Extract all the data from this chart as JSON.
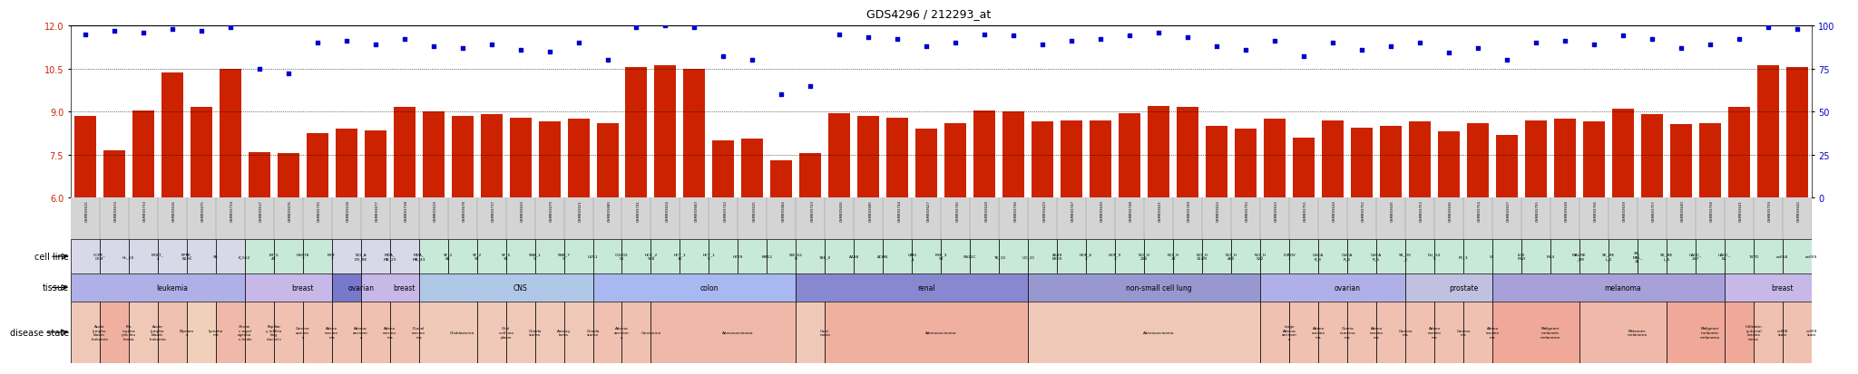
{
  "title": "GDS4296 / 212293_at",
  "ylim_left": [
    6,
    12
  ],
  "ylim_right": [
    0,
    100
  ],
  "yticks_left": [
    6,
    7.5,
    9,
    10.5,
    12
  ],
  "yticks_right": [
    0,
    25,
    50,
    75,
    100
  ],
  "bar_color": "#cc2200",
  "dot_color": "#0000cc",
  "n_samples": 60,
  "bar_values": [
    8.85,
    7.65,
    9.05,
    10.35,
    9.15,
    10.5,
    7.6,
    7.55,
    8.25,
    8.4,
    8.35,
    9.15,
    9.0,
    8.85,
    8.9,
    8.8,
    8.65,
    8.75,
    8.6,
    10.55,
    10.6,
    10.5,
    8.0,
    8.05,
    7.3,
    7.55,
    8.95,
    8.85,
    8.8,
    8.4,
    8.6,
    9.05,
    9.0,
    8.65,
    8.7,
    8.7,
    8.95,
    9.2,
    9.15,
    8.5,
    8.4,
    8.75,
    8.1,
    8.7,
    8.45,
    8.5,
    8.65,
    8.3,
    8.6,
    8.2,
    8.7,
    8.75,
    8.65,
    9.1,
    8.9,
    8.55,
    8.6,
    9.15,
    10.6,
    10.55
  ],
  "dot_values_pct": [
    95,
    97,
    96,
    98,
    97,
    99,
    75,
    72,
    90,
    91,
    89,
    92,
    88,
    87,
    89,
    86,
    85,
    90,
    80,
    99,
    100,
    99,
    82,
    80,
    60,
    65,
    95,
    93,
    92,
    88,
    90,
    95,
    94,
    89,
    91,
    92,
    94,
    96,
    93,
    88,
    86,
    91,
    82,
    90,
    86,
    88,
    90,
    84,
    87,
    80,
    90,
    91,
    89,
    94,
    92,
    87,
    89,
    92,
    99,
    98
  ],
  "sample_ids": [
    "GSM803615",
    "GSM803674",
    "GSM803733",
    "GSM803616",
    "GSM803675",
    "GSM803734",
    "GSM803617",
    "GSM803676",
    "GSM803735",
    "GSM803618",
    "GSM803677",
    "GSM803738",
    "GSM803619",
    "GSM803678",
    "GSM803737",
    "GSM803620",
    "GSM803679",
    "GSM803621",
    "GSM803680",
    "GSM803741",
    "GSM803624",
    "GSM803683",
    "GSM803742",
    "GSM803625",
    "GSM803684",
    "GSM803743",
    "GSM803626",
    "GSM803685",
    "GSM803744",
    "GSM803627",
    "GSM803745",
    "GSM803628",
    "GSM803746",
    "GSM803629",
    "GSM803747",
    "GSM803630",
    "GSM803748",
    "GSM803631",
    "GSM803749",
    "GSM803632",
    "GSM803750",
    "GSM803633",
    "GSM803751",
    "GSM803634",
    "GSM803752",
    "GSM803635",
    "GSM803753",
    "GSM803636",
    "GSM803754",
    "GSM803637",
    "GSM803755",
    "GSM803638",
    "GSM803756",
    "GSM803639",
    "GSM803757",
    "GSM803640",
    "GSM803758",
    "GSM803641",
    "GSM803759",
    "GSM803642"
  ],
  "cell_lines": [
    {
      "label": "CCRF_\nCEM",
      "start": 0,
      "end": 1,
      "color": "#d8d8e8"
    },
    {
      "label": "HL_60",
      "start": 1,
      "end": 2,
      "color": "#d8d8e8"
    },
    {
      "label": "MOLT_\n4",
      "start": 2,
      "end": 3,
      "color": "#d8d8e8"
    },
    {
      "label": "RPMI_\n8226",
      "start": 3,
      "end": 4,
      "color": "#d8d8e8"
    },
    {
      "label": "SR",
      "start": 4,
      "end": 5,
      "color": "#d8d8e8"
    },
    {
      "label": "K_562",
      "start": 5,
      "end": 6,
      "color": "#d8d8e8"
    },
    {
      "label": "BT_5\n49",
      "start": 6,
      "end": 7,
      "color": "#c8e8d8"
    },
    {
      "label": "HS578\nT",
      "start": 7,
      "end": 8,
      "color": "#c8e8d8"
    },
    {
      "label": "MCF\n7",
      "start": 8,
      "end": 9,
      "color": "#c8e8d8"
    },
    {
      "label": "NCI_A\nDR_RE",
      "start": 9,
      "end": 10,
      "color": "#d8d8e8"
    },
    {
      "label": "MDA_\nMB_23",
      "start": 10,
      "end": 11,
      "color": "#d8d8e8"
    },
    {
      "label": "MDA_\nMB_43",
      "start": 11,
      "end": 12,
      "color": "#d8d8e8"
    },
    {
      "label": "SF_2\n68",
      "start": 12,
      "end": 13,
      "color": "#c8e8d8"
    },
    {
      "label": "SF_2\n95",
      "start": 13,
      "end": 14,
      "color": "#c8e8d8"
    },
    {
      "label": "SF_5\n39",
      "start": 14,
      "end": 15,
      "color": "#c8e8d8"
    },
    {
      "label": "SNB_1\n9",
      "start": 15,
      "end": 16,
      "color": "#c8e8d8"
    },
    {
      "label": "SNB_7\n5",
      "start": 16,
      "end": 17,
      "color": "#c8e8d8"
    },
    {
      "label": "U251",
      "start": 17,
      "end": 18,
      "color": "#c8e8d8"
    },
    {
      "label": "COLO2\n05",
      "start": 18,
      "end": 19,
      "color": "#c8e8d8"
    },
    {
      "label": "HCC_2\n998",
      "start": 19,
      "end": 20,
      "color": "#c8e8d8"
    },
    {
      "label": "HCT_1\n16",
      "start": 20,
      "end": 21,
      "color": "#c8e8d8"
    },
    {
      "label": "HCT_1\n5",
      "start": 21,
      "end": 22,
      "color": "#c8e8d8"
    },
    {
      "label": "HT29",
      "start": 22,
      "end": 23,
      "color": "#c8e8d8"
    },
    {
      "label": "KM12",
      "start": 23,
      "end": 24,
      "color": "#c8e8d8"
    },
    {
      "label": "SW_62\n0",
      "start": 24,
      "end": 25,
      "color": "#c8e8d8"
    },
    {
      "label": "786_0",
      "start": 25,
      "end": 26,
      "color": "#c8e8d8"
    },
    {
      "label": "A498",
      "start": 26,
      "end": 27,
      "color": "#c8e8d8"
    },
    {
      "label": "ACHN",
      "start": 27,
      "end": 28,
      "color": "#c8e8d8"
    },
    {
      "label": "CAKI\n_1",
      "start": 28,
      "end": 29,
      "color": "#c8e8d8"
    },
    {
      "label": "RXF_3\n93",
      "start": 29,
      "end": 30,
      "color": "#c8e8d8"
    },
    {
      "label": "SN12C",
      "start": 30,
      "end": 31,
      "color": "#c8e8d8"
    },
    {
      "label": "TK_10",
      "start": 31,
      "end": 32,
      "color": "#c8e8d8"
    },
    {
      "label": "UO_31",
      "start": 32,
      "end": 33,
      "color": "#c8e8d8"
    },
    {
      "label": "A549\nEKVX",
      "start": 33,
      "end": 34,
      "color": "#c8e8d8"
    },
    {
      "label": "HOP_6\n2",
      "start": 34,
      "end": 35,
      "color": "#c8e8d8"
    },
    {
      "label": "HOP_9\n2",
      "start": 35,
      "end": 36,
      "color": "#c8e8d8"
    },
    {
      "label": "NCI_H\n226",
      "start": 36,
      "end": 37,
      "color": "#c8e8d8"
    },
    {
      "label": "NCI_H\n23",
      "start": 37,
      "end": 38,
      "color": "#c8e8d8"
    },
    {
      "label": "NCI_H\n322M",
      "start": 38,
      "end": 39,
      "color": "#c8e8d8"
    },
    {
      "label": "NCI_H\n460",
      "start": 39,
      "end": 40,
      "color": "#c8e8d8"
    },
    {
      "label": "NCI_H\n522",
      "start": 40,
      "end": 41,
      "color": "#c8e8d8"
    },
    {
      "label": "IGROV\n1",
      "start": 41,
      "end": 42,
      "color": "#c8e8d8"
    },
    {
      "label": "OVCA\nR_3",
      "start": 42,
      "end": 43,
      "color": "#c8e8d8"
    },
    {
      "label": "OVCA\nR_4",
      "start": 43,
      "end": 44,
      "color": "#c8e8d8"
    },
    {
      "label": "OVCA\nR_5",
      "start": 44,
      "end": 45,
      "color": "#c8e8d8"
    },
    {
      "label": "SK_OV\n_3",
      "start": 45,
      "end": 46,
      "color": "#c8e8d8"
    },
    {
      "label": "DU_14\n5",
      "start": 46,
      "end": 47,
      "color": "#c8e8d8"
    },
    {
      "label": "PC_3",
      "start": 47,
      "end": 48,
      "color": "#c8e8d8"
    },
    {
      "label": "V1",
      "start": 48,
      "end": 49,
      "color": "#c8e8d8"
    },
    {
      "label": "LOX\nIMVI",
      "start": 49,
      "end": 50,
      "color": "#c8e8d8"
    },
    {
      "label": "M14",
      "start": 50,
      "end": 51,
      "color": "#c8e8d8"
    },
    {
      "label": "MALME\n_3M",
      "start": 51,
      "end": 52,
      "color": "#c8e8d8"
    },
    {
      "label": "SK_ME\nL_2",
      "start": 52,
      "end": 53,
      "color": "#c8e8d8"
    },
    {
      "label": "SK_\nMEL_\n28",
      "start": 53,
      "end": 54,
      "color": "#c8e8d8"
    },
    {
      "label": "SK_ME\nL_5",
      "start": 54,
      "end": 55,
      "color": "#c8e8d8"
    },
    {
      "label": "UACC_\n257",
      "start": 55,
      "end": 56,
      "color": "#c8e8d8"
    },
    {
      "label": "UACC_\n62",
      "start": 56,
      "end": 57,
      "color": "#c8e8d8"
    },
    {
      "label": "T47D",
      "start": 57,
      "end": 58,
      "color": "#c8e8d8"
    },
    {
      "label": "cell58",
      "start": 58,
      "end": 59,
      "color": "#c8e8d8"
    },
    {
      "label": "cell59",
      "start": 59,
      "end": 60,
      "color": "#c8e8d8"
    }
  ],
  "tissues": [
    {
      "label": "leukemia",
      "start": 0,
      "end": 6,
      "color": "#b0b0e8"
    },
    {
      "label": "breast",
      "start": 6,
      "end": 9,
      "color": "#c8b8e8"
    },
    {
      "label": "ovarian",
      "start": 9,
      "end": 10,
      "color": "#7878cc"
    },
    {
      "label": "breast",
      "start": 10,
      "end": 12,
      "color": "#c8b8e8"
    },
    {
      "label": "CNS",
      "start": 12,
      "end": 18,
      "color": "#b0c8e8"
    },
    {
      "label": "colon",
      "start": 18,
      "end": 25,
      "color": "#a8b8f0"
    },
    {
      "label": "renal",
      "start": 25,
      "end": 33,
      "color": "#8888d0"
    },
    {
      "label": "non-small cell lung",
      "start": 33,
      "end": 41,
      "color": "#9898d0"
    },
    {
      "label": "ovarian",
      "start": 41,
      "end": 46,
      "color": "#b0b0e8"
    },
    {
      "label": "prostate",
      "start": 46,
      "end": 49,
      "color": "#c0c0e0"
    },
    {
      "label": "melanoma",
      "start": 49,
      "end": 57,
      "color": "#a8a0d8"
    },
    {
      "label": "breast",
      "start": 57,
      "end": 60,
      "color": "#c8b8e8"
    }
  ],
  "disease_states": [
    {
      "label": "Acute\nlympho\nblastic\nleukemia",
      "start": 0,
      "end": 1,
      "color": "#f0c8b8"
    },
    {
      "label": "Pro\nmyeloc\nytic leu\nkemia",
      "start": 1,
      "end": 2,
      "color": "#f0b0a0"
    },
    {
      "label": "Acute\nlympho\nblastic\nleukemia",
      "start": 2,
      "end": 3,
      "color": "#f0c8b8"
    },
    {
      "label": "Myelom\na",
      "start": 3,
      "end": 4,
      "color": "#f0c0b0"
    },
    {
      "label": "Lympho\nma",
      "start": 4,
      "end": 5,
      "color": "#f0d0b8"
    },
    {
      "label": "Chroni\nc myel\nogenou\ns leuke",
      "start": 5,
      "end": 6,
      "color": "#f0b8a8"
    },
    {
      "label": "Papillar\ny infiltra\nting\nductal c",
      "start": 6,
      "end": 7,
      "color": "#f0c0b0"
    },
    {
      "label": "Carcino\nsarcom\na",
      "start": 7,
      "end": 8,
      "color": "#f0c0b0"
    },
    {
      "label": "Adeno\ncarcino\nma",
      "start": 8,
      "end": 9,
      "color": "#f0c0b0"
    },
    {
      "label": "Adenoc\narcinom\na",
      "start": 9,
      "end": 10,
      "color": "#f0c0b0"
    },
    {
      "label": "Adeno\ncarcino\nma",
      "start": 10,
      "end": 11,
      "color": "#f0c0b0"
    },
    {
      "label": "Ductal\ncarcino\nma",
      "start": 11,
      "end": 12,
      "color": "#f0c0b0"
    },
    {
      "label": "Glioblastoma",
      "start": 12,
      "end": 14,
      "color": "#f0c8b8"
    },
    {
      "label": "Glial\ncell neo\nplasm",
      "start": 14,
      "end": 15,
      "color": "#f0c8b8"
    },
    {
      "label": "Gliobla\nstoma",
      "start": 15,
      "end": 16,
      "color": "#f0c8b8"
    },
    {
      "label": "Astrocy\ntoma",
      "start": 16,
      "end": 17,
      "color": "#f0c8b8"
    },
    {
      "label": "Gliobla\nstoma",
      "start": 17,
      "end": 18,
      "color": "#f0c8b8"
    },
    {
      "label": "Adenoc\narcinom\na",
      "start": 18,
      "end": 19,
      "color": "#f0c0b0"
    },
    {
      "label": "Carcinoma",
      "start": 19,
      "end": 20,
      "color": "#f0c0b0"
    },
    {
      "label": "Adenocarcinoma",
      "start": 20,
      "end": 25,
      "color": "#f0b8a8"
    },
    {
      "label": "Carci\nnoma",
      "start": 25,
      "end": 26,
      "color": "#f0c8b8"
    },
    {
      "label": "Adenocarcinoma",
      "start": 26,
      "end": 33,
      "color": "#f0b0a0"
    },
    {
      "label": "Adenocarcinoma",
      "start": 33,
      "end": 41,
      "color": "#f0c8b8"
    },
    {
      "label": "Large\nAdenoc\narcinom\na",
      "start": 41,
      "end": 42,
      "color": "#f0c0b0"
    },
    {
      "label": "Adeno\ncarcino\nma",
      "start": 42,
      "end": 43,
      "color": "#f0c0b0"
    },
    {
      "label": "Ovaria\nncarcino\nma",
      "start": 43,
      "end": 44,
      "color": "#f0c0b0"
    },
    {
      "label": "Adeno\ncarcino\nma",
      "start": 44,
      "end": 45,
      "color": "#f0c0b0"
    },
    {
      "label": "Carcino\nma",
      "start": 45,
      "end": 46,
      "color": "#f0c0b0"
    },
    {
      "label": "Adeno\ncarcino\nma",
      "start": 46,
      "end": 47,
      "color": "#f0c0b0"
    },
    {
      "label": "Carcino\nma",
      "start": 47,
      "end": 48,
      "color": "#f0c0b0"
    },
    {
      "label": "Adeno\ncarcino\nma",
      "start": 48,
      "end": 49,
      "color": "#f0c0b0"
    },
    {
      "label": "Malignant\nmelanotic\nmelanoma",
      "start": 49,
      "end": 52,
      "color": "#f0a898"
    },
    {
      "label": "Melanotic\nmelanoma",
      "start": 52,
      "end": 55,
      "color": "#f0b8a8"
    },
    {
      "label": "Malignant\nmelanotic\nmelanoma",
      "start": 55,
      "end": 57,
      "color": "#f0a898"
    },
    {
      "label": "Infiltratin\ng ductal\ncarcino\nnoma",
      "start": 57,
      "end": 58,
      "color": "#f0a898"
    },
    {
      "label": "cell58\nstate",
      "start": 58,
      "end": 59,
      "color": "#f0c0b0"
    },
    {
      "label": "cell59\nstate",
      "start": 59,
      "end": 60,
      "color": "#f0c0b0"
    }
  ],
  "background_color": "#ffffff",
  "label_color_left": "#cc2200",
  "label_color_right": "#0000cc"
}
